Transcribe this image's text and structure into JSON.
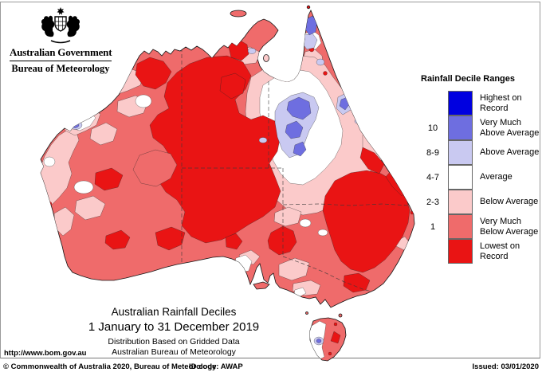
{
  "header": {
    "government": "Australian Government",
    "bureau": "Bureau of Meteorology"
  },
  "legend": {
    "title": "Rainfall Decile Ranges",
    "entries": [
      {
        "key": "highest",
        "range": "",
        "label": "Highest on\nRecord",
        "color": "#0000e0"
      },
      {
        "key": "vm-above",
        "range": "10",
        "label": "Very Much\nAbove Average",
        "color": "#6e6ee0"
      },
      {
        "key": "above",
        "range": "8-9",
        "label": "Above Average",
        "color": "#c9c9f1"
      },
      {
        "key": "average",
        "range": "4-7",
        "label": "Average",
        "color": "#ffffff"
      },
      {
        "key": "below",
        "range": "2-3",
        "label": "Below Average",
        "color": "#fbcaca"
      },
      {
        "key": "vm-below",
        "range": "1",
        "label": "Very Much\nBelow Average",
        "color": "#ef6b6b"
      },
      {
        "key": "lowest",
        "range": "",
        "label": "Lowest on\nRecord",
        "color": "#e91414"
      }
    ]
  },
  "map_title": {
    "line1": "Australian Rainfall Deciles",
    "line2": "1 January to 31 December 2019",
    "line3": "Distribution Based on Gridded Data",
    "line4": "Australian Bureau of Meteorology"
  },
  "footer": {
    "url": "http://www.bom.gov.au",
    "copyright": "© Commonwealth of Australia 2020, Bureau of Meteorology",
    "id_code": "ID code: AWAP",
    "issued": "Issued: 03/01/2020"
  },
  "map": {
    "region": "Australia",
    "description": "Choropleth map of 2019 rainfall deciles: most of the continent is Very Much Below Average or Lowest on Record; Above to Very Much Above Average patches appear in northwest Queensland, the Cape York tip, the Townsville coast, the Pilbara coast and western Tasmania."
  }
}
